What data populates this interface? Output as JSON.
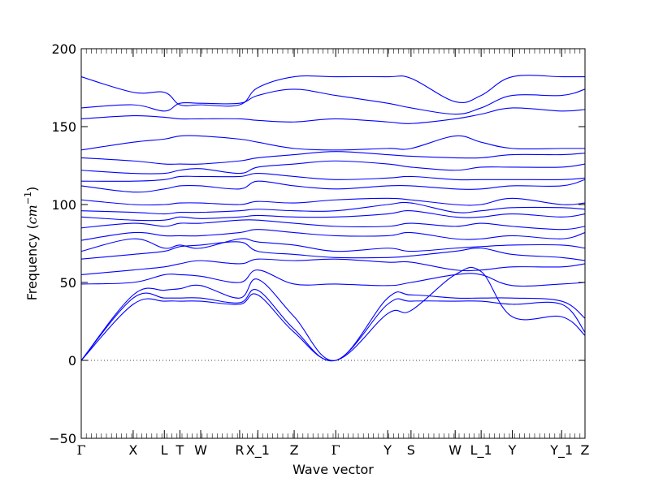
{
  "chart_data": {
    "type": "line",
    "xlabel": "Wave vector",
    "ylabel_text": "Frequency (",
    "ylabel_unit_base": "cm",
    "ylabel_unit_exp": "−1",
    "ylabel_close": ")",
    "ylim": [
      -50,
      200
    ],
    "y_ticks": [
      -50,
      0,
      50,
      100,
      150,
      200
    ],
    "y_tick_labels": [
      "−50",
      "0",
      "50",
      "100",
      "150",
      "200"
    ],
    "zero_line": {
      "y": 0,
      "style": "dotted"
    },
    "line_color": "#0000ff",
    "q_points": [
      {
        "label": "Γ",
        "x": 0.0
      },
      {
        "label": "X",
        "x": 1.0
      },
      {
        "label": "L",
        "x": 1.6
      },
      {
        "label": "T",
        "x": 1.9
      },
      {
        "label": "W",
        "x": 2.3
      },
      {
        "label": "R",
        "x": 3.05
      },
      {
        "label": "X_1",
        "x": 3.4
      },
      {
        "label": "Z",
        "x": 4.1
      },
      {
        "label": "Γ",
        "x": 4.9
      },
      {
        "label": "Y",
        "x": 5.9
      },
      {
        "label": "S",
        "x": 6.35
      },
      {
        "label": "W",
        "x": 7.2
      },
      {
        "label": "L_1",
        "x": 7.7
      },
      {
        "label": "Y",
        "x": 8.3
      },
      {
        "label": "Y_1",
        "x": 9.25
      },
      {
        "label": "Z",
        "x": 9.7
      }
    ],
    "series": [
      {
        "x": [
          0,
          1,
          1.6,
          1.9,
          2.3,
          3.05,
          3.4,
          4.1,
          4.9,
          5.9,
          6.35,
          7.2,
          7.7,
          8.3,
          9.25,
          9.7
        ],
        "values": [
          0,
          36,
          38,
          38,
          38,
          36,
          42,
          18,
          0,
          30,
          32,
          55,
          57,
          28,
          28,
          16
        ]
      },
      {
        "x": [
          0,
          1,
          1.6,
          1.9,
          2.3,
          3.05,
          3.4,
          4.1,
          4.9,
          5.9,
          6.35,
          7.2,
          7.7,
          8.3,
          9.25,
          9.7
        ],
        "values": [
          0,
          40,
          40,
          40,
          40,
          37,
          45,
          20,
          0,
          36,
          38,
          38,
          38,
          36,
          36,
          18
        ]
      },
      {
        "x": [
          0,
          1,
          1.6,
          1.9,
          2.3,
          3.05,
          3.4,
          4.1,
          4.9,
          5.9,
          6.35,
          7.2,
          7.7,
          8.3,
          9.25,
          9.7
        ],
        "values": [
          0,
          42,
          45,
          46,
          48,
          40,
          52,
          28,
          0,
          40,
          42,
          40,
          40,
          40,
          38,
          27
        ]
      },
      {
        "x": [
          0,
          1,
          1.6,
          1.9,
          2.3,
          3.05,
          3.4,
          4.1,
          4.9,
          5.9,
          6.35,
          7.2,
          7.7,
          8.3,
          9.25,
          9.7
        ],
        "values": [
          49,
          50,
          55,
          55,
          54,
          50,
          58,
          49,
          49,
          48,
          50,
          55,
          55,
          48,
          49,
          50
        ]
      },
      {
        "x": [
          0,
          1,
          1.6,
          1.9,
          2.3,
          3.05,
          3.4,
          4.1,
          4.9,
          5.9,
          6.35,
          7.2,
          7.7,
          8.3,
          9.25,
          9.7
        ],
        "values": [
          55,
          58,
          60,
          62,
          64,
          62,
          65,
          64,
          65,
          63,
          63,
          58,
          58,
          60,
          60,
          62
        ]
      },
      {
        "x": [
          0,
          1,
          1.6,
          1.9,
          2.3,
          3.05,
          3.4,
          4.1,
          4.9,
          5.9,
          6.35,
          7.2,
          7.7,
          8.3,
          9.25,
          9.7
        ],
        "values": [
          65,
          68,
          70,
          73,
          74,
          76,
          70,
          68,
          66,
          66,
          67,
          70,
          72,
          68,
          66,
          64
        ]
      },
      {
        "x": [
          0,
          1,
          1.6,
          1.9,
          2.3,
          3.05,
          3.4,
          4.1,
          4.9,
          5.9,
          6.35,
          7.2,
          7.7,
          8.3,
          9.25,
          9.7
        ],
        "values": [
          70,
          78,
          72,
          74,
          72,
          78,
          76,
          74,
          70,
          72,
          70,
          72,
          73,
          74,
          74,
          72
        ]
      },
      {
        "x": [
          0,
          1,
          1.6,
          1.9,
          2.3,
          3.05,
          3.4,
          4.1,
          4.9,
          5.9,
          6.35,
          7.2,
          7.7,
          8.3,
          9.25,
          9.7
        ],
        "values": [
          77,
          82,
          80,
          80,
          80,
          82,
          84,
          82,
          80,
          80,
          82,
          78,
          78,
          80,
          78,
          82
        ]
      },
      {
        "x": [
          0,
          1,
          1.6,
          1.9,
          2.3,
          3.05,
          3.4,
          4.1,
          4.9,
          5.9,
          6.35,
          7.2,
          7.7,
          8.3,
          9.25,
          9.7
        ],
        "values": [
          85,
          88,
          86,
          88,
          88,
          90,
          90,
          88,
          86,
          86,
          88,
          86,
          88,
          86,
          84,
          86
        ]
      },
      {
        "x": [
          0,
          1,
          1.6,
          1.9,
          2.3,
          3.05,
          3.4,
          4.1,
          4.9,
          5.9,
          6.35,
          7.2,
          7.7,
          8.3,
          9.25,
          9.7
        ],
        "values": [
          92,
          90,
          90,
          92,
          91,
          92,
          93,
          92,
          92,
          94,
          96,
          92,
          92,
          94,
          92,
          94
        ]
      },
      {
        "x": [
          0,
          1,
          1.6,
          1.9,
          2.3,
          3.05,
          3.4,
          4.1,
          4.9,
          5.9,
          6.35,
          7.2,
          7.7,
          8.3,
          9.25,
          9.7
        ],
        "values": [
          96,
          95,
          94,
          95,
          95,
          96,
          97,
          96,
          96,
          100,
          101,
          95,
          96,
          98,
          98,
          97
        ]
      },
      {
        "x": [
          0,
          1,
          1.6,
          1.9,
          2.3,
          3.05,
          3.4,
          4.1,
          4.9,
          5.9,
          6.35,
          7.2,
          7.7,
          8.3,
          9.25,
          9.7
        ],
        "values": [
          103,
          100,
          100,
          101,
          101,
          100,
          102,
          101,
          103,
          104,
          103,
          100,
          100,
          104,
          100,
          101
        ]
      },
      {
        "x": [
          0,
          1,
          1.6,
          1.9,
          2.3,
          3.05,
          3.4,
          4.1,
          4.9,
          5.9,
          6.35,
          7.2,
          7.7,
          8.3,
          9.25,
          9.7
        ],
        "values": [
          112,
          108,
          110,
          112,
          112,
          110,
          115,
          112,
          110,
          112,
          112,
          110,
          110,
          112,
          112,
          116
        ]
      },
      {
        "x": [
          0,
          1,
          1.6,
          1.9,
          2.3,
          3.05,
          3.4,
          4.1,
          4.9,
          5.9,
          6.35,
          7.2,
          7.7,
          8.3,
          9.25,
          9.7
        ],
        "values": [
          115,
          115,
          116,
          118,
          118,
          118,
          120,
          118,
          116,
          117,
          118,
          116,
          116,
          116,
          116,
          117
        ]
      },
      {
        "x": [
          0,
          1,
          1.6,
          1.9,
          2.3,
          3.05,
          3.4,
          4.1,
          4.9,
          5.9,
          6.35,
          7.2,
          7.7,
          8.3,
          9.25,
          9.7
        ],
        "values": [
          122,
          120,
          120,
          122,
          123,
          120,
          124,
          126,
          128,
          126,
          124,
          122,
          124,
          124,
          124,
          126
        ]
      },
      {
        "x": [
          0,
          1,
          1.6,
          1.9,
          2.3,
          3.05,
          3.4,
          4.1,
          4.9,
          5.9,
          6.35,
          7.2,
          7.7,
          8.3,
          9.25,
          9.7
        ],
        "values": [
          130,
          128,
          126,
          126,
          126,
          128,
          130,
          132,
          134,
          132,
          131,
          130,
          130,
          132,
          132,
          133
        ]
      },
      {
        "x": [
          0,
          1,
          1.6,
          1.9,
          2.3,
          3.05,
          3.4,
          4.1,
          4.9,
          5.9,
          6.35,
          7.2,
          7.7,
          8.3,
          9.25,
          9.7
        ],
        "values": [
          135,
          140,
          142,
          144,
          144,
          142,
          140,
          136,
          135,
          136,
          136,
          144,
          140,
          136,
          136,
          136
        ]
      },
      {
        "x": [
          0,
          1,
          1.6,
          1.9,
          2.3,
          3.05,
          3.4,
          4.1,
          4.9,
          5.9,
          6.35,
          7.2,
          7.7,
          8.3,
          9.25,
          9.7
        ],
        "values": [
          155,
          157,
          156,
          155,
          155,
          155,
          154,
          153,
          155,
          153,
          152,
          155,
          158,
          162,
          160,
          161
        ]
      },
      {
        "x": [
          0,
          1,
          1.6,
          1.9,
          2.3,
          3.05,
          3.4,
          4.1,
          4.9,
          5.9,
          6.35,
          7.2,
          7.7,
          8.3,
          9.25,
          9.7
        ],
        "values": [
          162,
          164,
          160,
          165,
          165,
          165,
          170,
          174,
          170,
          165,
          162,
          158,
          162,
          170,
          170,
          174
        ]
      },
      {
        "x": [
          0,
          1,
          1.6,
          1.9,
          2.3,
          3.05,
          3.4,
          4.1,
          4.9,
          5.9,
          6.35,
          7.2,
          7.7,
          8.3,
          9.25,
          9.7
        ],
        "values": [
          182,
          172,
          172,
          164,
          164,
          164,
          175,
          182,
          182,
          182,
          181,
          166,
          170,
          182,
          182,
          182
        ]
      }
    ]
  }
}
